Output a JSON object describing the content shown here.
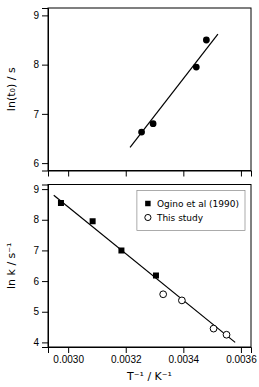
{
  "chart_data": [
    {
      "type": "scatter",
      "ylabel": "ln(t₀) / s",
      "xlim": [
        0.00293,
        0.003635
      ],
      "ylim": [
        5.85,
        9.15
      ],
      "xticks": [
        0.003,
        0.0032,
        0.0034,
        0.0036
      ],
      "yticks": [
        6,
        7,
        8,
        9
      ],
      "tick_labels": "y",
      "series": [
        {
          "type": "line",
          "color": "#000000",
          "x": [
            0.003215,
            0.00352
          ],
          "values": [
            6.32,
            8.62
          ]
        },
        {
          "type": "scatter",
          "color": "#000000",
          "marker": "circle",
          "x": [
            0.003255,
            0.003295,
            0.003445,
            0.00348
          ],
          "values": [
            6.63,
            6.8,
            7.95,
            8.5
          ]
        }
      ]
    },
    {
      "type": "scatter",
      "xlabel": "T⁻¹ / K⁻¹",
      "ylabel": "ln k / s⁻¹",
      "xlim": [
        0.00293,
        0.003635
      ],
      "ylim": [
        3.85,
        9.15
      ],
      "xticks": [
        {
          "value": 0.003,
          "label": "0.0030"
        },
        {
          "value": 0.0032,
          "label": "0.0032"
        },
        {
          "value": 0.0034,
          "label": "0.0034"
        },
        {
          "value": 0.0036,
          "label": "0.0036"
        }
      ],
      "yticks": [
        4,
        5,
        6,
        7,
        8,
        9
      ],
      "legend": "upper right",
      "series": [
        {
          "type": "line",
          "color": "#000000",
          "x": [
            0.00295,
            0.00358
          ],
          "values": [
            8.8,
            4.0
          ]
        },
        {
          "type": "scatter",
          "name": "Ogino et al (1990)",
          "color": "#000000",
          "marker": "square",
          "x": [
            0.002975,
            0.003085,
            0.003185,
            0.003305
          ],
          "values": [
            8.55,
            7.95,
            7.0,
            6.18
          ]
        },
        {
          "type": "scatter",
          "name": "This study",
          "color": "#000000",
          "marker": "circle-open",
          "x": [
            0.00333,
            0.003395,
            0.003505,
            0.00355
          ],
          "values": [
            5.57,
            5.37,
            4.45,
            4.25
          ]
        }
      ]
    }
  ]
}
